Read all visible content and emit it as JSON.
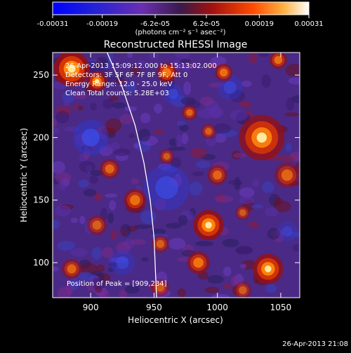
{
  "chart_data": {
    "type": "heatmap",
    "title": "Reconstructed RHESSI Image",
    "xlabel": "Heliocentric X (arcsec)",
    "ylabel": "Heliocentric Y (arcsec)",
    "xlim": [
      870,
      1065
    ],
    "ylim": [
      72,
      268
    ],
    "x_ticks": [
      900,
      950,
      1000,
      1050
    ],
    "y_ticks": [
      100,
      150,
      200,
      250
    ],
    "colorbar": {
      "ticks": [
        "-0.00031",
        "-0.00019",
        "-6.2e-05",
        "6.2e-05",
        "0.00019",
        "0.00031"
      ],
      "tick_values": [
        -0.00031,
        -0.00019,
        -6.2e-05,
        6.2e-05,
        0.00019,
        0.00031
      ],
      "range": [
        -0.00031,
        0.00031
      ],
      "label": "(photons cm⁻² s⁻¹ asec⁻²)"
    },
    "annotations": [
      "26-Apr-2013 15:09:12.000 to 15:13:02.000",
      "Detectors: 3F 5F 6F 7F 8F 9F, Att 0",
      "Energy Range: 12.0 - 25.0 keV",
      "Clean   Total counts: 5.28E+03"
    ],
    "peak_label": "Position of Peak = [909,234]",
    "peak": [
      909,
      234
    ],
    "limb_curve": [
      [
        913,
        268
      ],
      [
        925,
        240
      ],
      [
        935,
        210
      ],
      [
        942,
        180
      ],
      [
        947,
        150
      ],
      [
        950,
        120
      ],
      [
        952,
        72
      ]
    ],
    "hotspots": [
      {
        "x": 885,
        "y": 255,
        "r": 14,
        "a": 1.0
      },
      {
        "x": 905,
        "y": 245,
        "r": 8,
        "a": 0.85
      },
      {
        "x": 960,
        "y": 252,
        "r": 8,
        "a": 0.8
      },
      {
        "x": 1005,
        "y": 252,
        "r": 7,
        "a": 0.7
      },
      {
        "x": 1048,
        "y": 262,
        "r": 7,
        "a": 0.7
      },
      {
        "x": 978,
        "y": 220,
        "r": 6,
        "a": 0.6
      },
      {
        "x": 1035,
        "y": 200,
        "r": 18,
        "a": 0.85
      },
      {
        "x": 1055,
        "y": 170,
        "r": 10,
        "a": 0.6
      },
      {
        "x": 993,
        "y": 205,
        "r": 6,
        "a": 0.55
      },
      {
        "x": 960,
        "y": 185,
        "r": 6,
        "a": 0.5
      },
      {
        "x": 1000,
        "y": 170,
        "r": 8,
        "a": 0.6
      },
      {
        "x": 1020,
        "y": 140,
        "r": 6,
        "a": 0.5
      },
      {
        "x": 993,
        "y": 130,
        "r": 12,
        "a": 0.95
      },
      {
        "x": 935,
        "y": 150,
        "r": 9,
        "a": 0.7
      },
      {
        "x": 905,
        "y": 130,
        "r": 8,
        "a": 0.55
      },
      {
        "x": 915,
        "y": 175,
        "r": 8,
        "a": 0.6
      },
      {
        "x": 955,
        "y": 115,
        "r": 7,
        "a": 0.55
      },
      {
        "x": 985,
        "y": 100,
        "r": 9,
        "a": 0.75
      },
      {
        "x": 1040,
        "y": 95,
        "r": 12,
        "a": 0.9
      },
      {
        "x": 885,
        "y": 95,
        "r": 8,
        "a": 0.6
      },
      {
        "x": 955,
        "y": 80,
        "r": 7,
        "a": 0.5
      },
      {
        "x": 1020,
        "y": 78,
        "r": 7,
        "a": 0.5
      }
    ],
    "cold_spots": [
      {
        "x": 900,
        "y": 200,
        "r": 14,
        "a": 0.8
      },
      {
        "x": 960,
        "y": 160,
        "r": 18,
        "a": 0.7
      },
      {
        "x": 1010,
        "y": 240,
        "r": 10,
        "a": 0.6
      },
      {
        "x": 925,
        "y": 100,
        "r": 10,
        "a": 0.6
      },
      {
        "x": 1055,
        "y": 125,
        "r": 8,
        "a": 0.5
      },
      {
        "x": 965,
        "y": 235,
        "r": 8,
        "a": 0.6
      }
    ]
  },
  "footer": {
    "timestamp": "26-Apr-2013 21:08"
  }
}
